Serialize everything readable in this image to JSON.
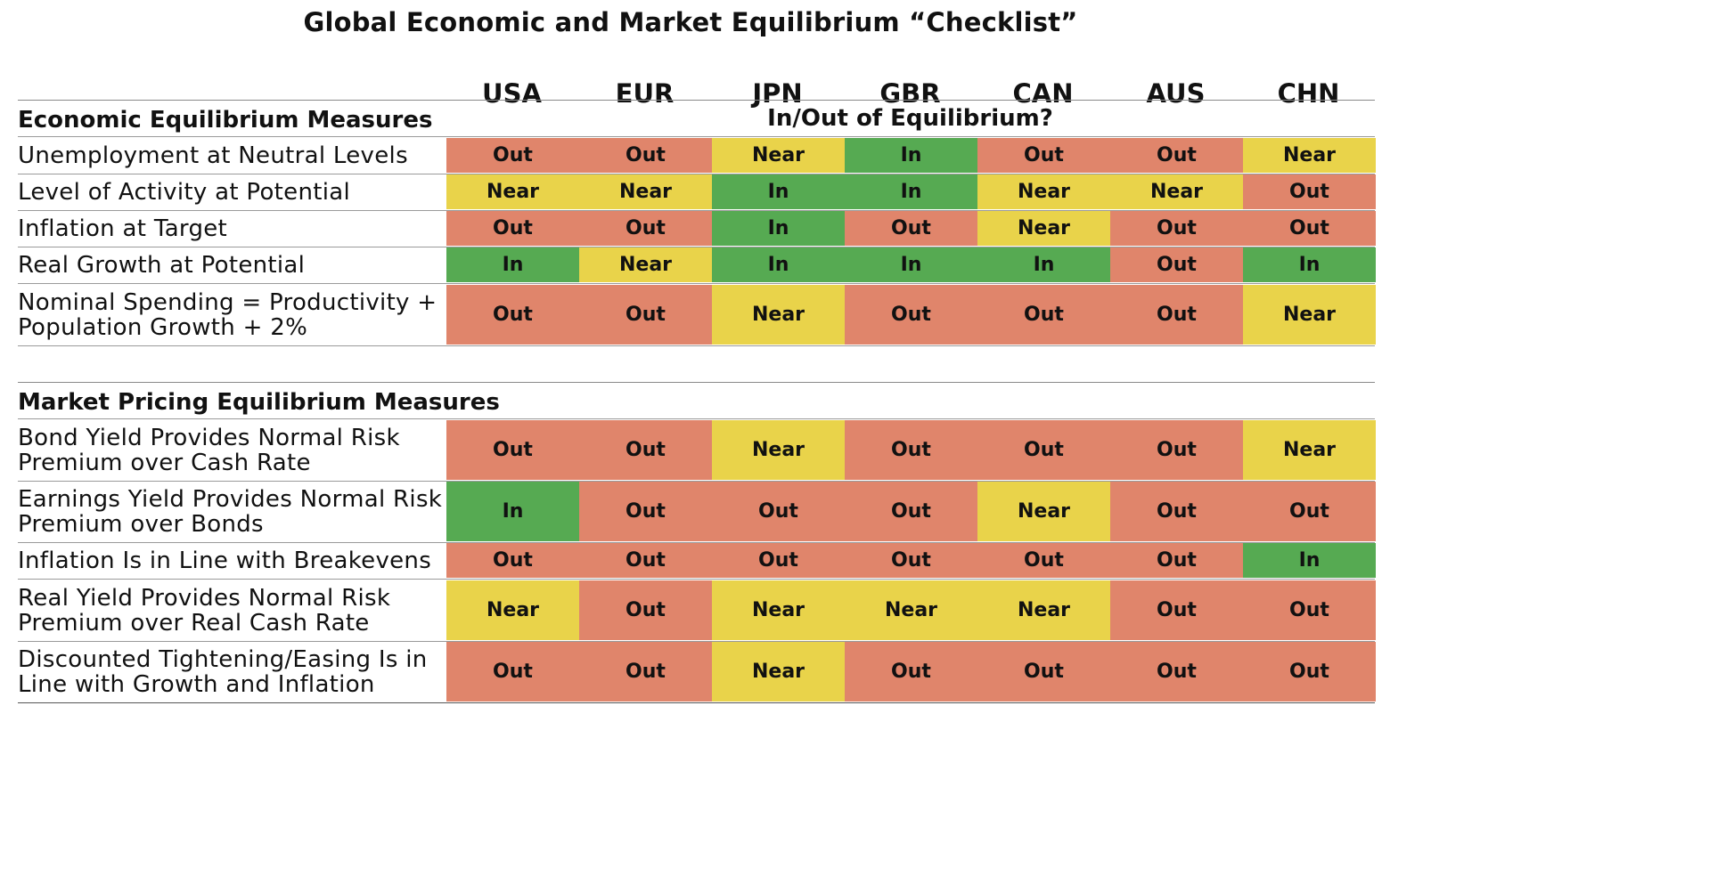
{
  "chart_data": {
    "type": "table",
    "title": "Global Economic and Market Equilibrium “Checklist”",
    "columns": [
      "USA",
      "EUR",
      "JPN",
      "GBR",
      "CAN",
      "AUS",
      "CHN"
    ],
    "subheader": "In/Out of Equilibrium?",
    "sections": [
      {
        "name": "Economic Equilibrium Measures",
        "rows": [
          {
            "label": [
              "Unemployment at Neutral Levels"
            ],
            "values": [
              "Out",
              "Out",
              "Near",
              "In",
              "Out",
              "Out",
              "Near"
            ]
          },
          {
            "label": [
              "Level of Activity at Potential"
            ],
            "values": [
              "Near",
              "Near",
              "In",
              "In",
              "Near",
              "Near",
              "Out"
            ]
          },
          {
            "label": [
              "Inflation at Target"
            ],
            "values": [
              "Out",
              "Out",
              "In",
              "Out",
              "Near",
              "Out",
              "Out"
            ]
          },
          {
            "label": [
              "Real Growth at Potential"
            ],
            "values": [
              "In",
              "Near",
              "In",
              "In",
              "In",
              "Out",
              "In"
            ]
          },
          {
            "label": [
              "Nominal Spending = Productivity +",
              "Population Growth + 2%"
            ],
            "values": [
              "Out",
              "Out",
              "Near",
              "Out",
              "Out",
              "Out",
              "Near"
            ]
          }
        ]
      },
      {
        "name": "Market Pricing Equilibrium Measures",
        "rows": [
          {
            "label": [
              "Bond Yield Provides Normal Risk",
              "Premium over Cash Rate"
            ],
            "values": [
              "Out",
              "Out",
              "Near",
              "Out",
              "Out",
              "Out",
              "Near"
            ]
          },
          {
            "label": [
              "Earnings Yield Provides Normal Risk",
              "Premium over Bonds"
            ],
            "values": [
              "In",
              "Out",
              "Out",
              "Out",
              "Near",
              "Out",
              "Out"
            ]
          },
          {
            "label": [
              "Inflation Is in Line with Breakevens"
            ],
            "values": [
              "Out",
              "Out",
              "Out",
              "Out",
              "Out",
              "Out",
              "In"
            ]
          },
          {
            "label": [
              "Real Yield Provides Normal Risk",
              "Premium over Real Cash Rate"
            ],
            "values": [
              "Near",
              "Out",
              "Near",
              "Near",
              "Near",
              "Out",
              "Out"
            ]
          },
          {
            "label": [
              "Discounted Tightening/Easing Is in",
              "Line with Growth and Inflation"
            ],
            "values": [
              "Out",
              "Out",
              "Near",
              "Out",
              "Out",
              "Out",
              "Out"
            ]
          }
        ]
      }
    ],
    "colors": {
      "Out": "#e0856b",
      "Near": "#e9d34a",
      "In": "#56aa52"
    }
  }
}
